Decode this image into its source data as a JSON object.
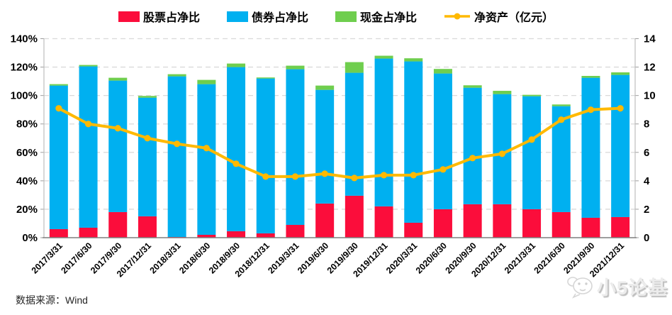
{
  "chart_data": {
    "type": "bar",
    "subtype": "stacked-bars-with-line-overlay",
    "title": "",
    "categories": [
      "2017/3/31",
      "2017/6/30",
      "2017/9/30",
      "2017/12/31",
      "2018/3/31",
      "2018/6/30",
      "2018/9/30",
      "2018/12/31",
      "2019/3/31",
      "2019/6/30",
      "2019/9/30",
      "2019/12/31",
      "2020/3/31",
      "2020/6/30",
      "2020/9/30",
      "2020/12/31",
      "2021/3/31",
      "2021/6/30",
      "2021/9/30",
      "2021/12/31"
    ],
    "series": [
      {
        "name": "股票占净比",
        "type": "bar",
        "stacked": true,
        "axis": "left",
        "color": "#FB0D3B",
        "values": [
          6,
          7,
          18,
          15,
          0.5,
          2,
          4.5,
          3,
          9,
          24,
          29.5,
          22,
          10.5,
          20,
          23.5,
          23.5,
          20,
          18,
          14,
          14.5
        ]
      },
      {
        "name": "债券占净比",
        "type": "bar",
        "stacked": true,
        "axis": "left",
        "color": "#00B0F0",
        "values": [
          101,
          113.5,
          92.5,
          83.5,
          113,
          106,
          115.5,
          109,
          109.5,
          80,
          86.5,
          104,
          113.5,
          95.5,
          82,
          77.5,
          79.5,
          74.5,
          98.5,
          100
        ]
      },
      {
        "name": "现金占净比",
        "type": "bar",
        "stacked": true,
        "axis": "left",
        "color": "#6FCE4E",
        "values": [
          1,
          1,
          2,
          1.2,
          1.5,
          3,
          2.5,
          0.7,
          2.5,
          3,
          7.5,
          2,
          2.2,
          3.2,
          1.7,
          2.3,
          1,
          1.2,
          1.3,
          1.8
        ]
      },
      {
        "name": "净资产（亿元）",
        "type": "line",
        "stacked": false,
        "axis": "right",
        "color": "#FFB900",
        "values": [
          9.1,
          8.0,
          7.7,
          7.0,
          6.6,
          6.3,
          5.2,
          4.3,
          4.3,
          4.5,
          4.2,
          4.4,
          4.4,
          4.8,
          5.6,
          5.9,
          6.9,
          8.3,
          9.0,
          9.1
        ]
      }
    ],
    "left_axis": {
      "min": 0,
      "max": 140,
      "step": 20,
      "format": "percent",
      "ticks": [
        "0%",
        "20%",
        "40%",
        "60%",
        "80%",
        "100%",
        "120%",
        "140%"
      ]
    },
    "right_axis": {
      "min": 0,
      "max": 14,
      "step": 2,
      "format": "number",
      "ticks": [
        "0",
        "2",
        "4",
        "6",
        "8",
        "10",
        "12",
        "14"
      ]
    },
    "grid": "horizontal-dashed",
    "legend_position": "top-center",
    "grid_color": "#D9D9D9",
    "axis_line_color": "#9E9E9E",
    "tick_label_color": "#000000"
  },
  "footer": {
    "source_label": "数据来源：Wind"
  },
  "watermark": {
    "text": "小5论基"
  }
}
